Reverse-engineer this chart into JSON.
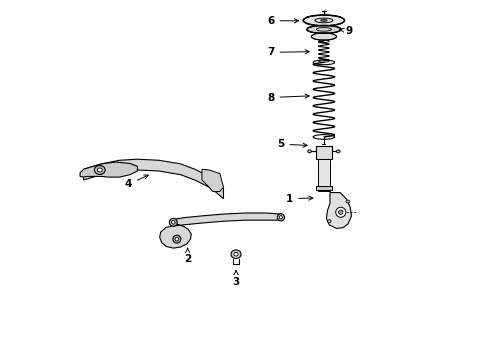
{
  "bg_color": "#ffffff",
  "line_color": "#000000",
  "fig_width": 4.9,
  "fig_height": 3.6,
  "dpi": 100,
  "sx": 0.72,
  "fs": 7.5
}
